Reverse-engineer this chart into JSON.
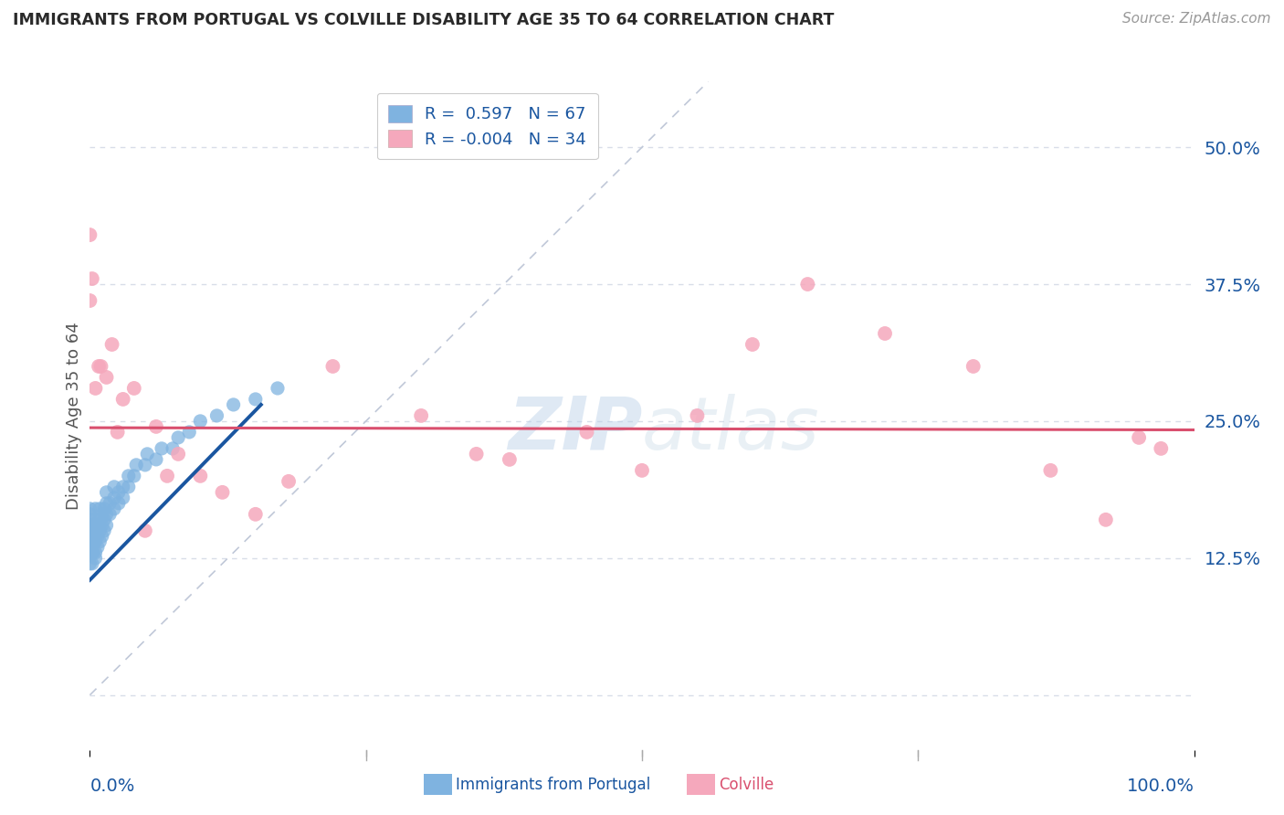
{
  "title": "IMMIGRANTS FROM PORTUGAL VS COLVILLE DISABILITY AGE 35 TO 64 CORRELATION CHART",
  "source_text": "Source: ZipAtlas.com",
  "ylabel": "Disability Age 35 to 64",
  "xlim": [
    0.0,
    1.0
  ],
  "ylim": [
    -0.05,
    0.56
  ],
  "yticks": [
    0.0,
    0.125,
    0.25,
    0.375,
    0.5
  ],
  "ytick_labels": [
    "",
    "12.5%",
    "25.0%",
    "37.5%",
    "50.0%"
  ],
  "legend_blue_r": "0.597",
  "legend_blue_n": "67",
  "legend_pink_r": "-0.004",
  "legend_pink_n": "34",
  "watermark_top": "ZIP",
  "watermark_bottom": "atlas",
  "blue_scatter_x": [
    0.0,
    0.0,
    0.0,
    0.0,
    0.0,
    0.0,
    0.0,
    0.0,
    0.0,
    0.0,
    0.002,
    0.002,
    0.002,
    0.003,
    0.003,
    0.003,
    0.003,
    0.004,
    0.004,
    0.005,
    0.005,
    0.005,
    0.005,
    0.005,
    0.005,
    0.007,
    0.007,
    0.007,
    0.009,
    0.009,
    0.009,
    0.009,
    0.011,
    0.011,
    0.011,
    0.013,
    0.013,
    0.013,
    0.015,
    0.015,
    0.015,
    0.015,
    0.018,
    0.018,
    0.022,
    0.022,
    0.022,
    0.026,
    0.026,
    0.03,
    0.03,
    0.035,
    0.035,
    0.04,
    0.042,
    0.05,
    0.052,
    0.06,
    0.065,
    0.075,
    0.08,
    0.09,
    0.1,
    0.115,
    0.13,
    0.15,
    0.17
  ],
  "blue_scatter_y": [
    0.12,
    0.13,
    0.135,
    0.14,
    0.145,
    0.15,
    0.155,
    0.16,
    0.165,
    0.17,
    0.12,
    0.13,
    0.14,
    0.13,
    0.14,
    0.15,
    0.155,
    0.14,
    0.15,
    0.125,
    0.13,
    0.14,
    0.15,
    0.16,
    0.17,
    0.135,
    0.145,
    0.155,
    0.14,
    0.15,
    0.16,
    0.17,
    0.145,
    0.155,
    0.165,
    0.15,
    0.16,
    0.17,
    0.155,
    0.165,
    0.175,
    0.185,
    0.165,
    0.175,
    0.17,
    0.18,
    0.19,
    0.175,
    0.185,
    0.18,
    0.19,
    0.19,
    0.2,
    0.2,
    0.21,
    0.21,
    0.22,
    0.215,
    0.225,
    0.225,
    0.235,
    0.24,
    0.25,
    0.255,
    0.265,
    0.27,
    0.28
  ],
  "pink_scatter_x": [
    0.0,
    0.0,
    0.002,
    0.005,
    0.008,
    0.01,
    0.015,
    0.02,
    0.025,
    0.03,
    0.04,
    0.05,
    0.06,
    0.07,
    0.08,
    0.1,
    0.12,
    0.15,
    0.18,
    0.22,
    0.3,
    0.35,
    0.38,
    0.45,
    0.5,
    0.55,
    0.6,
    0.65,
    0.72,
    0.8,
    0.87,
    0.92,
    0.95,
    0.97
  ],
  "pink_scatter_y": [
    0.42,
    0.36,
    0.38,
    0.28,
    0.3,
    0.3,
    0.29,
    0.32,
    0.24,
    0.27,
    0.28,
    0.15,
    0.245,
    0.2,
    0.22,
    0.2,
    0.185,
    0.165,
    0.195,
    0.3,
    0.255,
    0.22,
    0.215,
    0.24,
    0.205,
    0.255,
    0.32,
    0.375,
    0.33,
    0.3,
    0.205,
    0.16,
    0.235,
    0.225
  ],
  "blue_line_x": [
    0.0,
    0.155
  ],
  "blue_line_y": [
    0.105,
    0.265
  ],
  "pink_line_x": [
    0.0,
    1.0
  ],
  "pink_line_y": [
    0.244,
    0.242
  ],
  "trendline_x": [
    0.0,
    0.56
  ],
  "trendline_y": [
    0.0,
    0.56
  ],
  "blue_color": "#7fb3e0",
  "pink_color": "#f5a8bc",
  "blue_line_color": "#1a56a0",
  "pink_line_color": "#d94f6e",
  "trendline_color": "#c0c8d8",
  "background_color": "#ffffff",
  "grid_color": "#d8dde8",
  "title_color": "#2a2a2a",
  "source_color": "#999999",
  "axis_label_color": "#555555"
}
